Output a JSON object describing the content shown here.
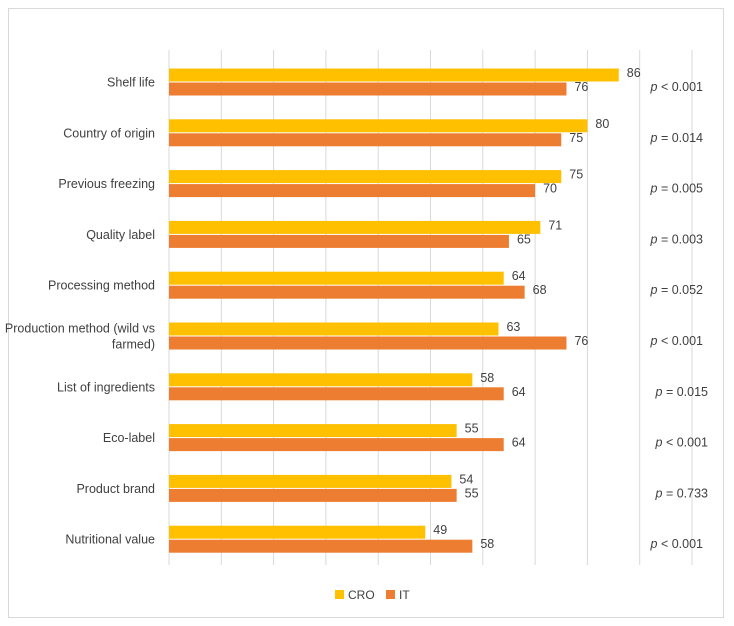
{
  "chart_data": {
    "type": "bar",
    "orientation": "horizontal",
    "categories": [
      "Shelf life",
      "Country of origin",
      "Previous freezing",
      "Quality label",
      "Processing method",
      "Production method (wild vs farmed)",
      "List of ingredients",
      "Eco-label",
      "Product brand",
      "Nutritional value"
    ],
    "series": [
      {
        "name": "CRO",
        "color": "#FFC000",
        "values": [
          86,
          80,
          75,
          71,
          64,
          63,
          58,
          55,
          54,
          49
        ]
      },
      {
        "name": "IT",
        "color": "#ED7D31",
        "values": [
          76,
          75,
          70,
          65,
          68,
          76,
          64,
          64,
          55,
          58
        ]
      }
    ],
    "p_values": [
      {
        "prefix": "p",
        "text": " < 0.001"
      },
      {
        "prefix": "p",
        "text": " = 0.014"
      },
      {
        "prefix": "p",
        "text": " = 0.005"
      },
      {
        "prefix": "p",
        "text": " = 0.003"
      },
      {
        "prefix": "p",
        "text": " = 0.052"
      },
      {
        "prefix": "p",
        "text": " < 0.001"
      },
      {
        "prefix": "p",
        "text": " = 0.015"
      },
      {
        "prefix": "p",
        "text": " < 0.001"
      },
      {
        "prefix": "p",
        "text": " = 0.733"
      },
      {
        "prefix": "p",
        "text": " < 0.001"
      }
    ],
    "xlim": [
      0,
      100
    ],
    "grid": true,
    "legend": "bottom",
    "title": "",
    "xlabel": "",
    "ylabel": ""
  }
}
